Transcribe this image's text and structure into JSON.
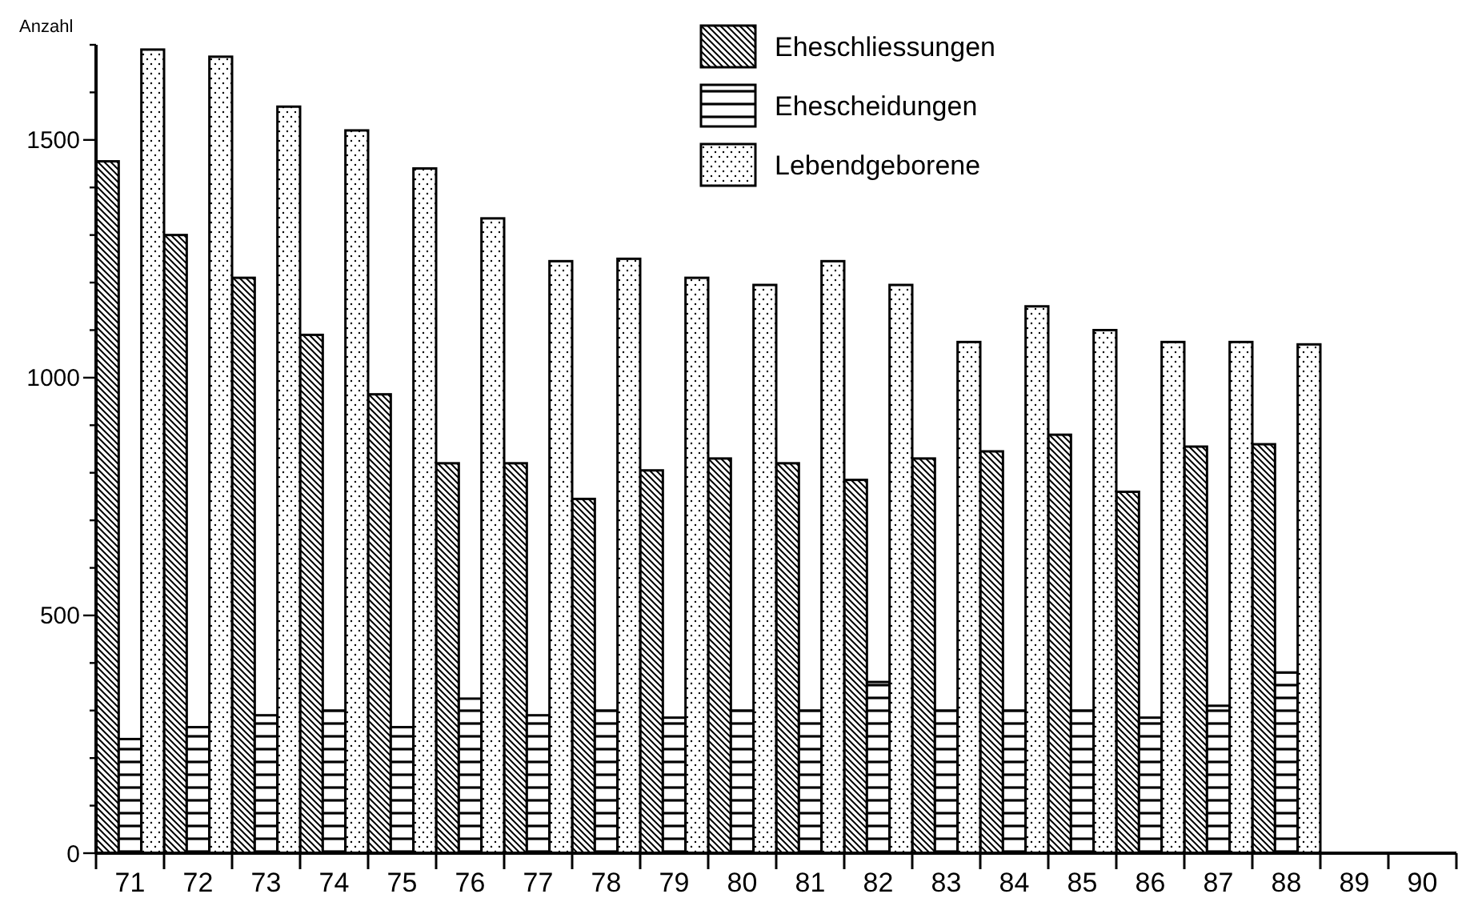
{
  "chart_data": {
    "type": "bar",
    "ylabel": "Anzahl",
    "categories": [
      "71",
      "72",
      "73",
      "74",
      "75",
      "76",
      "77",
      "78",
      "79",
      "80",
      "81",
      "82",
      "83",
      "84",
      "85",
      "86",
      "87",
      "88",
      "89",
      "90"
    ],
    "series": [
      {
        "name": "Eheschliessungen",
        "color": "#000000",
        "values": [
          1455,
          1300,
          1210,
          1090,
          965,
          820,
          820,
          745,
          805,
          830,
          820,
          785,
          830,
          845,
          880,
          760,
          855,
          860,
          null,
          null
        ]
      },
      {
        "name": "Ehescheidungen",
        "color": "#000000",
        "values": [
          240,
          265,
          290,
          300,
          265,
          325,
          290,
          300,
          285,
          300,
          300,
          360,
          300,
          300,
          300,
          285,
          310,
          380,
          null,
          null
        ]
      },
      {
        "name": "Lebendgeborene",
        "color": "#000000",
        "values": [
          1690,
          1675,
          1570,
          1520,
          1440,
          1335,
          1245,
          1250,
          1210,
          1195,
          1245,
          1195,
          1075,
          1150,
          1100,
          1075,
          1075,
          1070,
          null,
          null
        ]
      }
    ],
    "ylim": [
      0,
      1700
    ],
    "yticks": [
      0,
      {
        "value": 100,
        "label": null
      },
      {
        "value": 200,
        "label": null
      },
      {
        "value": 300,
        "label": null
      },
      {
        "value": 400,
        "label": null
      },
      500,
      {
        "value": 600,
        "label": null
      },
      {
        "value": 700,
        "label": null
      },
      {
        "value": 800,
        "label": null
      },
      {
        "value": 900,
        "label": null
      },
      1000,
      {
        "value": 1100,
        "label": null
      },
      {
        "value": 1200,
        "label": null
      },
      {
        "value": 1300,
        "label": null
      },
      {
        "value": 1400,
        "label": null
      },
      1500,
      {
        "value": 1600,
        "label": null
      },
      {
        "value": 1700,
        "label": null
      }
    ],
    "grid": false,
    "legend": "top"
  }
}
